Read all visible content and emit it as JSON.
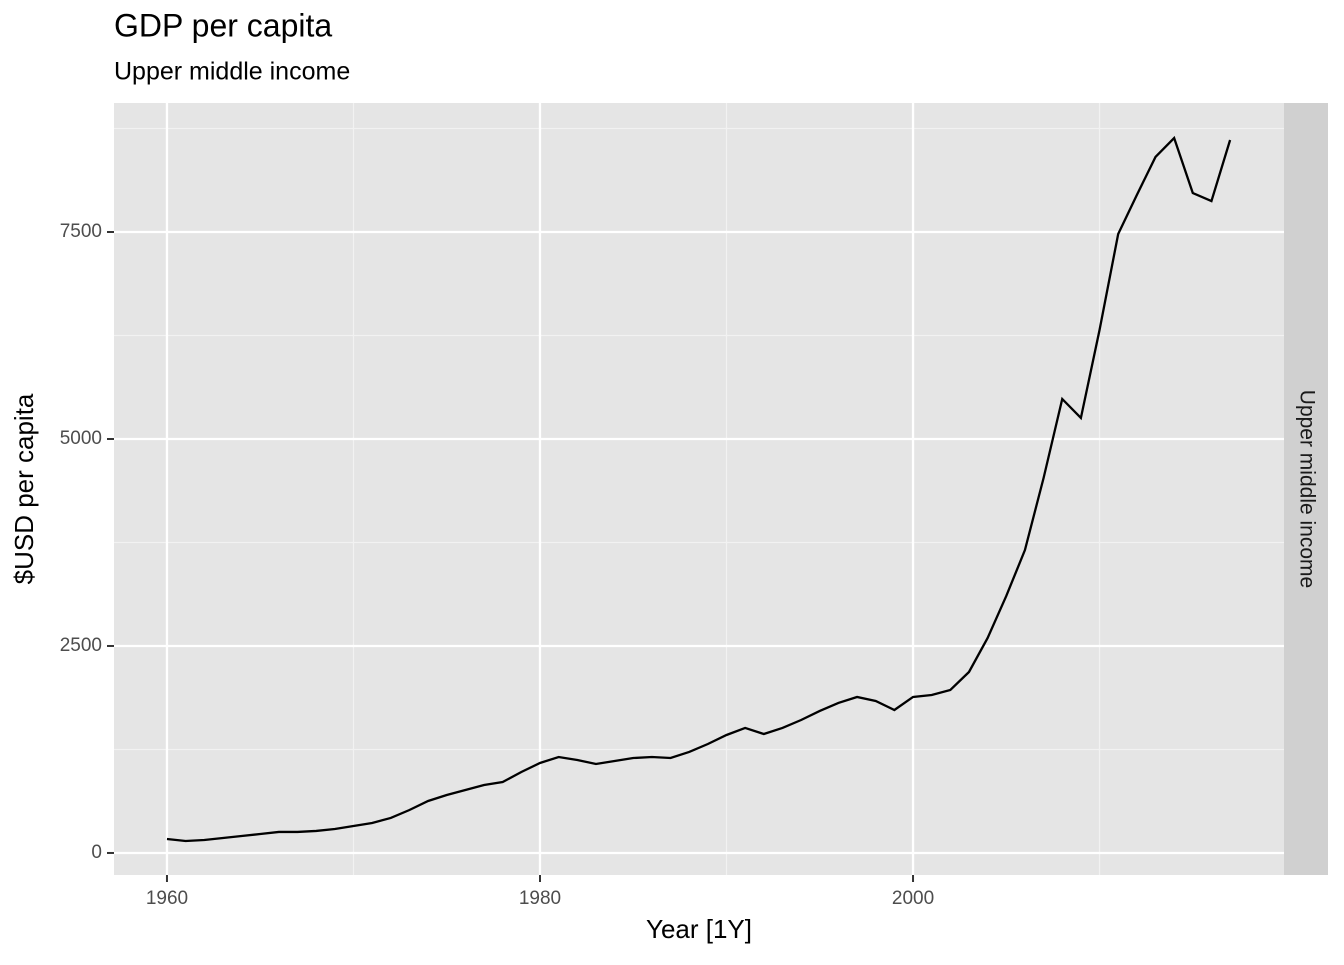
{
  "chart_data": {
    "type": "line",
    "title": "GDP per capita",
    "subtitle": "Upper middle income",
    "facet_label": "Upper middle income",
    "x_label": "Year [1Y]",
    "y_label": "$USD per capita",
    "x": [
      1960,
      1961,
      1962,
      1963,
      1964,
      1965,
      1966,
      1967,
      1968,
      1969,
      1970,
      1971,
      1972,
      1973,
      1974,
      1975,
      1976,
      1977,
      1978,
      1979,
      1980,
      1981,
      1982,
      1983,
      1984,
      1985,
      1986,
      1987,
      1988,
      1989,
      1990,
      1991,
      1992,
      1993,
      1994,
      1995,
      1996,
      1997,
      1998,
      1999,
      2000,
      2001,
      2002,
      2003,
      2004,
      2005,
      2006,
      2007,
      2008,
      2009,
      2010,
      2011,
      2012,
      2013,
      2014,
      2015,
      2016,
      2017
    ],
    "series": [
      {
        "color": "#000000",
        "values": [
          169,
          145,
          157,
          181,
          205,
          229,
          254,
          254,
          266,
          290,
          326,
          362,
          423,
          519,
          628,
          700,
          761,
          821,
          857,
          978,
          1087,
          1159,
          1123,
          1075,
          1111,
          1147,
          1159,
          1147,
          1220,
          1316,
          1425,
          1510,
          1437,
          1510,
          1606,
          1715,
          1812,
          1884,
          1836,
          1727,
          1884,
          1908,
          1969,
          2186,
          2597,
          3104,
          3659,
          4529,
          5483,
          5254,
          6316,
          7476,
          7947,
          8406,
          8635,
          7971,
          7874,
          8611
        ]
      }
    ],
    "xlim": [
      1957.16,
      2019.89
    ],
    "ylim": [
      -266,
      9058
    ],
    "xticks": [
      1960,
      1980,
      2000
    ],
    "yticks": [
      0,
      2500,
      5000,
      7500
    ],
    "grid": true
  }
}
